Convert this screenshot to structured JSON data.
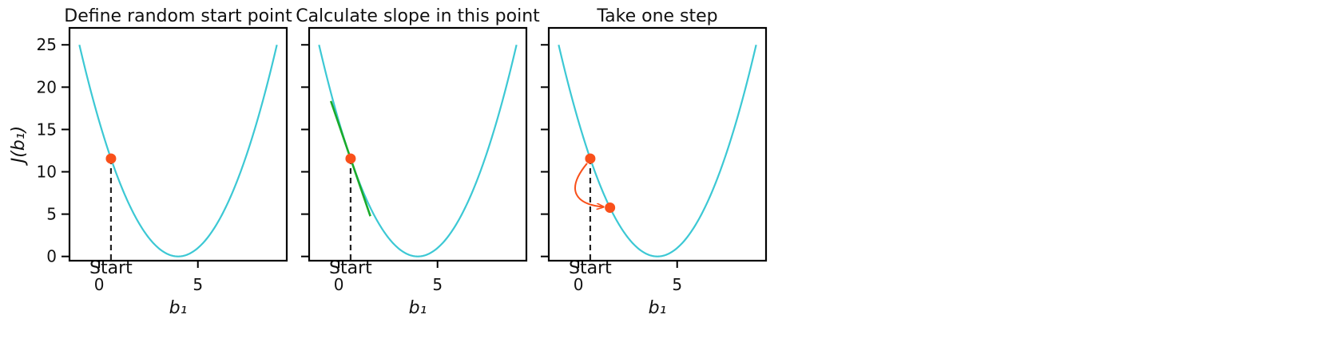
{
  "chart_data": [
    {
      "type": "line",
      "title": "Define random start point",
      "xlabel": "b₁",
      "ylabel": "J(b₁)",
      "xlim": [
        -1.5,
        9.5
      ],
      "ylim": [
        -0.5,
        27
      ],
      "xticks": [
        0,
        5
      ],
      "yticks": [
        0,
        5,
        10,
        15,
        20,
        25
      ],
      "show_ytick_labels": true,
      "grid": false,
      "curve": {
        "function": "(x-4)^2",
        "x_range": [
          -1,
          9
        ],
        "color": "#3cc8d4"
      },
      "start_point": {
        "x": 0.6,
        "y": 11.56,
        "color": "#f9501a"
      },
      "start_label": "Start"
    },
    {
      "type": "line",
      "title": "Calculate slope in this point",
      "xlabel": "b₁",
      "xlim": [
        -1.5,
        9.5
      ],
      "ylim": [
        -0.5,
        27
      ],
      "xticks": [
        0,
        5
      ],
      "yticks": [
        0,
        5,
        10,
        15,
        20,
        25
      ],
      "show_ytick_labels": false,
      "grid": false,
      "curve": {
        "function": "(x-4)^2",
        "x_range": [
          -1,
          9
        ],
        "color": "#3cc8d4"
      },
      "start_point": {
        "x": 0.6,
        "y": 11.56,
        "color": "#f9501a"
      },
      "start_label": "Start",
      "tangent": {
        "x": [
          -0.4,
          1.6
        ],
        "color": "#1aab2a"
      }
    },
    {
      "type": "line",
      "title": "Take one step",
      "xlabel": "b₁",
      "xlim": [
        -1.5,
        9.5
      ],
      "ylim": [
        -0.5,
        27
      ],
      "xticks": [
        0,
        5
      ],
      "yticks": [
        0,
        5,
        10,
        15,
        20,
        25
      ],
      "show_ytick_labels": false,
      "grid": false,
      "curve": {
        "function": "(x-4)^2",
        "x_range": [
          -1,
          9
        ],
        "color": "#3cc8d4"
      },
      "start_point": {
        "x": 0.6,
        "y": 11.56,
        "color": "#f9501a"
      },
      "start_label": "Start",
      "step_point": {
        "x": 1.6,
        "y": 5.76,
        "color": "#f9501a"
      }
    }
  ]
}
